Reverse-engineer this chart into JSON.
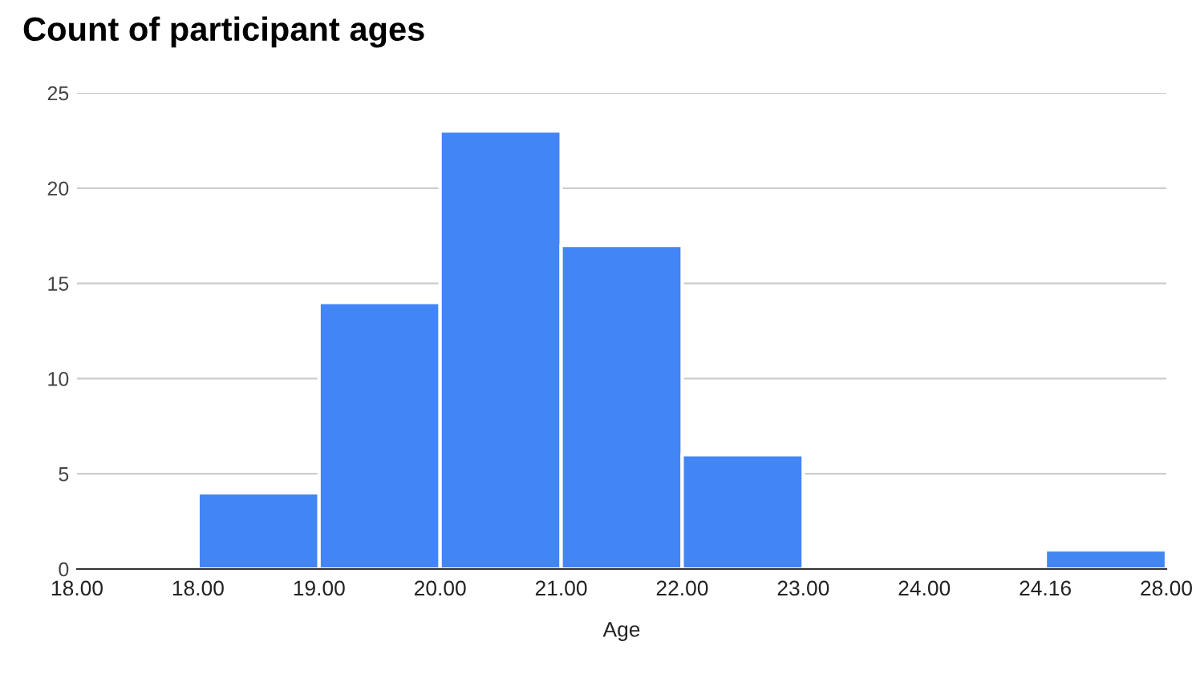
{
  "chart_data": {
    "type": "bar",
    "title": "Count of participant ages",
    "xlabel": "Age",
    "categories": [
      null,
      null,
      null,
      null,
      null,
      null,
      null,
      null,
      null
    ],
    "values": [
      0,
      4,
      14,
      23,
      17,
      6,
      0,
      0,
      1
    ],
    "color": "#4285f4",
    "annotations": [
      "18.00",
      "18.00",
      "19.00",
      "20.00",
      "21.00",
      "22.00",
      "23.00",
      "24.00",
      "24.16",
      "28.00"
    ],
    "ylim": [
      0,
      25
    ],
    "yticks": [
      0,
      5,
      10,
      15,
      20,
      25
    ],
    "grid": "y",
    "legend": false
  }
}
